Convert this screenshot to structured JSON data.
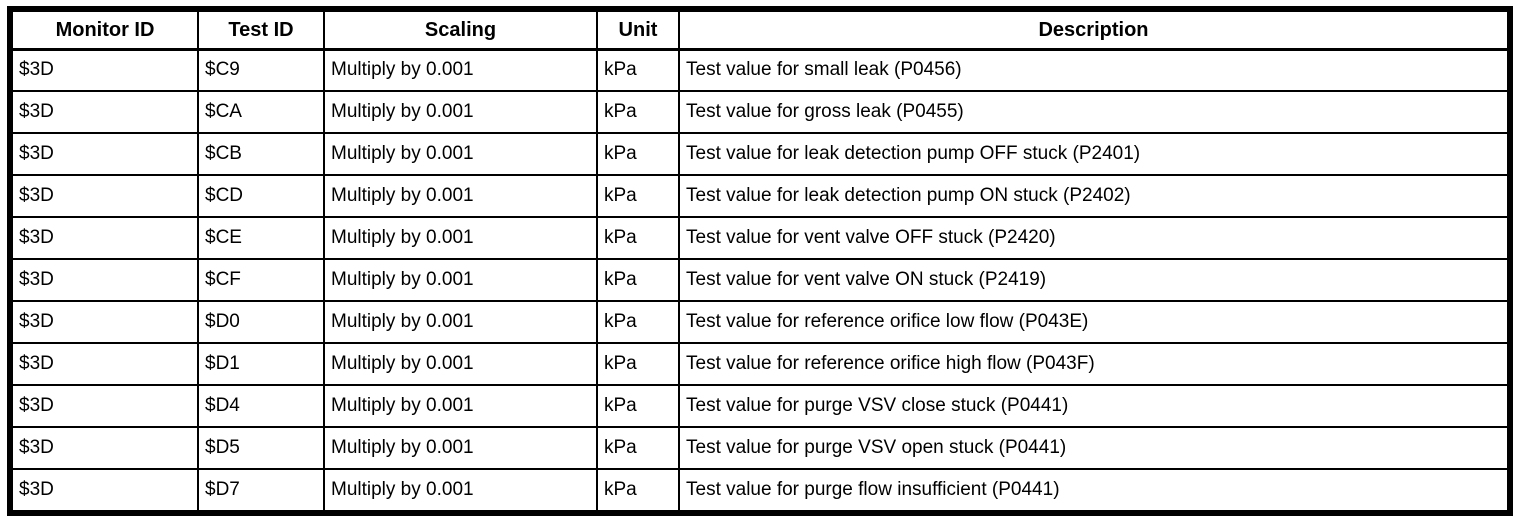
{
  "table": {
    "columns": [
      {
        "label": "Monitor ID"
      },
      {
        "label": "Test ID"
      },
      {
        "label": "Scaling"
      },
      {
        "label": "Unit"
      },
      {
        "label": "Description"
      }
    ],
    "rows": [
      [
        "$3D",
        "$C9",
        "Multiply by 0.001",
        "kPa",
        "Test value for small leak (P0456)"
      ],
      [
        "$3D",
        "$CA",
        "Multiply by 0.001",
        "kPa",
        "Test value for gross leak (P0455)"
      ],
      [
        "$3D",
        "$CB",
        "Multiply by 0.001",
        "kPa",
        "Test value for leak detection pump OFF stuck (P2401)"
      ],
      [
        "$3D",
        "$CD",
        "Multiply by 0.001",
        "kPa",
        "Test value for leak detection pump ON stuck (P2402)"
      ],
      [
        "$3D",
        "$CE",
        "Multiply by 0.001",
        "kPa",
        "Test value for vent valve OFF stuck (P2420)"
      ],
      [
        "$3D",
        "$CF",
        "Multiply by 0.001",
        "kPa",
        "Test value for vent valve ON stuck (P2419)"
      ],
      [
        "$3D",
        "$D0",
        "Multiply by 0.001",
        "kPa",
        "Test value for reference orifice low flow (P043E)"
      ],
      [
        "$3D",
        "$D1",
        "Multiply by 0.001",
        "kPa",
        "Test value for reference orifice high flow (P043F)"
      ],
      [
        "$3D",
        "$D4",
        "Multiply by 0.001",
        "kPa",
        "Test value for purge VSV close stuck (P0441)"
      ],
      [
        "$3D",
        "$D5",
        "Multiply by 0.001",
        "kPa",
        "Test value for purge VSV open stuck (P0441)"
      ],
      [
        "$3D",
        "$D7",
        "Multiply by 0.001",
        "kPa",
        "Test value for purge flow insufficient (P0441)"
      ]
    ],
    "colors": {
      "border": "#000000",
      "text": "#000000",
      "background": "#ffffff"
    }
  }
}
